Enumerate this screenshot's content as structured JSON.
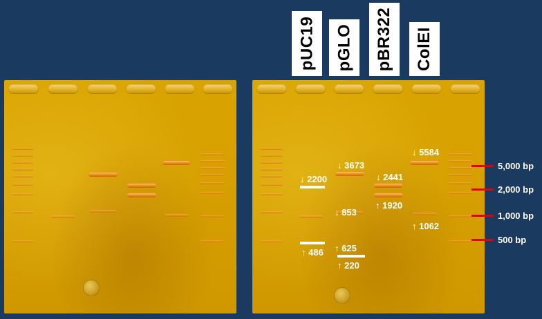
{
  "lane_labels": [
    "pUC19",
    "pGLO",
    "pBR322",
    "ColEI"
  ],
  "annotations": [
    {
      "arrow": "↓",
      "value": "2200"
    },
    {
      "arrow": "↑",
      "value": "486"
    },
    {
      "arrow": "↓",
      "value": "3673"
    },
    {
      "arrow": "↓",
      "value": "853"
    },
    {
      "arrow": "↑",
      "value": "625"
    },
    {
      "arrow": "↑",
      "value": "220"
    },
    {
      "arrow": "↓",
      "value": "2441"
    },
    {
      "arrow": "↑",
      "value": "1920"
    },
    {
      "arrow": "↓",
      "value": "5584"
    },
    {
      "arrow": "↑",
      "value": "1062"
    }
  ],
  "size_markers": [
    "5,000 bp",
    "2,000 bp",
    "1,000 bp",
    "500 bp"
  ],
  "colors": {
    "background": "#1a3a60",
    "marker_tick": "#e00000",
    "band": "#e98a12"
  }
}
